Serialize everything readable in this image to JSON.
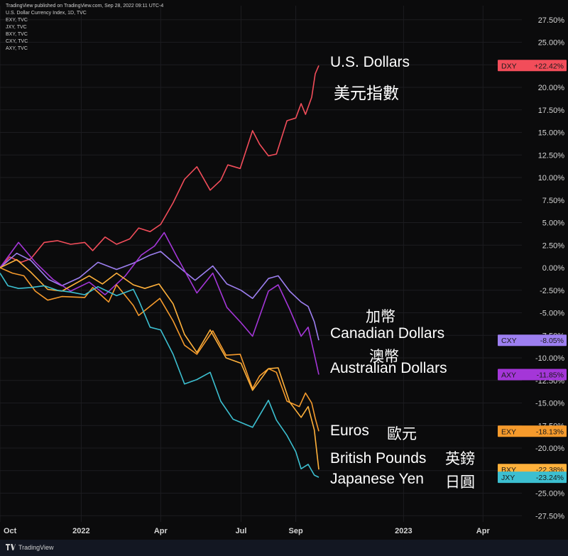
{
  "header": {
    "title": "U.S. Dollar Currency Index, 1D, TVC",
    "publisher": "TradingView published on TradingView.com, Sep 28, 2022 09:11 UTC-4",
    "legend_lines": [
      "EXY, TVC",
      "JXY, TVC",
      "BXY, TVC",
      "CXY, TVC",
      "AXY, TVC"
    ]
  },
  "annotations": {
    "usd_en": "U.S. Dollars",
    "usd_zh": "美元指數",
    "cad_zh": "加幣",
    "cad_en": "Canadian Dollars",
    "aud_zh": "澳幣",
    "aud_en": "Australian Dollars",
    "eur_en": "Euros",
    "eur_zh": "歐元",
    "gbp_en": "British Pounds",
    "gbp_zh": "英鎊",
    "jpy_en": "Japanese Yen",
    "jpy_zh": "日圓"
  },
  "footer": {
    "brand": "TradingView"
  },
  "chart_data": {
    "type": "line",
    "ylim": [
      -28.5,
      28.0
    ],
    "y_ticks": [
      27.5,
      25,
      22.5,
      20,
      17.5,
      15,
      12.5,
      10,
      7.5,
      5,
      2.5,
      0,
      -2.5,
      -5,
      -7.5,
      -10,
      -12.5,
      -15,
      -17.5,
      -20,
      -22.5,
      -25,
      -27.5
    ],
    "y_tick_labels": [
      "27.50%",
      "25.00%",
      "22.50%",
      "20.00%",
      "17.50%",
      "15.00%",
      "12.50%",
      "10.00%",
      "7.50%",
      "5.00%",
      "2.50%",
      "0.00%",
      "-2.50%",
      "-5.00%",
      "-7.50%",
      "-10.00%",
      "-12.50%",
      "-15.00%",
      "-17.50%",
      "-20.00%",
      "-22.50%",
      "-25.00%",
      "-27.50%"
    ],
    "x_range": [
      "2021-10-01",
      "2023-05-15"
    ],
    "x_tick_labels": [
      {
        "date": "2021-10-01",
        "label": "Oct"
      },
      {
        "date": "2022-01-01",
        "label": "2022"
      },
      {
        "date": "2022-04-01",
        "label": "Apr"
      },
      {
        "date": "2022-07-01",
        "label": "Jul"
      },
      {
        "date": "2022-09-01",
        "label": "Sep"
      },
      {
        "date": "2023-01-01",
        "label": "2023"
      },
      {
        "date": "2023-04-01",
        "label": "Apr"
      }
    ],
    "series": [
      {
        "name": "DXY",
        "color": "#f24d5a",
        "final_label": "+22.42%",
        "final_value": 22.42,
        "points": [
          [
            "2021-10-01",
            0
          ],
          [
            "2021-10-12",
            1.2
          ],
          [
            "2021-10-25",
            0.6
          ],
          [
            "2021-11-05",
            1.0
          ],
          [
            "2021-11-20",
            2.8
          ],
          [
            "2021-12-05",
            3.0
          ],
          [
            "2021-12-20",
            2.6
          ],
          [
            "2022-01-05",
            2.8
          ],
          [
            "2022-01-14",
            1.9
          ],
          [
            "2022-01-28",
            3.4
          ],
          [
            "2022-02-10",
            2.6
          ],
          [
            "2022-02-25",
            3.2
          ],
          [
            "2022-03-07",
            4.4
          ],
          [
            "2022-03-20",
            4.0
          ],
          [
            "2022-04-01",
            4.8
          ],
          [
            "2022-04-15",
            7.2
          ],
          [
            "2022-04-28",
            9.8
          ],
          [
            "2022-05-12",
            11.2
          ],
          [
            "2022-05-27",
            8.6
          ],
          [
            "2022-06-08",
            9.7
          ],
          [
            "2022-06-16",
            11.4
          ],
          [
            "2022-06-30",
            11.0
          ],
          [
            "2022-07-14",
            15.2
          ],
          [
            "2022-07-22",
            13.7
          ],
          [
            "2022-08-01",
            12.4
          ],
          [
            "2022-08-10",
            12.6
          ],
          [
            "2022-08-22",
            16.3
          ],
          [
            "2022-09-01",
            16.6
          ],
          [
            "2022-09-07",
            18.2
          ],
          [
            "2022-09-12",
            17.0
          ],
          [
            "2022-09-19",
            18.9
          ],
          [
            "2022-09-23",
            21.5
          ],
          [
            "2022-09-27",
            22.42
          ]
        ]
      },
      {
        "name": "CXY",
        "color": "#9d7ff0",
        "final_label": "-8.05%",
        "final_value": -8.05,
        "points": [
          [
            "2021-10-01",
            0
          ],
          [
            "2021-10-20",
            1.6
          ],
          [
            "2021-11-05",
            0.8
          ],
          [
            "2021-11-25",
            -1.3
          ],
          [
            "2021-12-10",
            -2.0
          ],
          [
            "2021-12-30",
            -1.1
          ],
          [
            "2022-01-20",
            0.6
          ],
          [
            "2022-02-10",
            -0.2
          ],
          [
            "2022-03-01",
            0.5
          ],
          [
            "2022-03-20",
            1.4
          ],
          [
            "2022-04-01",
            1.8
          ],
          [
            "2022-04-15",
            0.6
          ],
          [
            "2022-05-10",
            -1.4
          ],
          [
            "2022-05-30",
            0.2
          ],
          [
            "2022-06-15",
            -1.8
          ],
          [
            "2022-07-01",
            -2.5
          ],
          [
            "2022-07-14",
            -3.4
          ],
          [
            "2022-08-01",
            -1.2
          ],
          [
            "2022-08-12",
            -0.9
          ],
          [
            "2022-08-25",
            -2.6
          ],
          [
            "2022-09-07",
            -3.8
          ],
          [
            "2022-09-15",
            -4.3
          ],
          [
            "2022-09-22",
            -6.0
          ],
          [
            "2022-09-27",
            -8.05
          ]
        ]
      },
      {
        "name": "AXY",
        "color": "#a436d8",
        "final_label": "-11.85%",
        "final_value": -11.85,
        "points": [
          [
            "2021-10-01",
            0
          ],
          [
            "2021-10-22",
            2.8
          ],
          [
            "2021-11-10",
            0.6
          ],
          [
            "2021-11-30",
            -1.3
          ],
          [
            "2021-12-20",
            -2.6
          ],
          [
            "2022-01-10",
            -1.6
          ],
          [
            "2022-01-28",
            -3.0
          ],
          [
            "2022-02-20",
            -0.9
          ],
          [
            "2022-03-10",
            1.4
          ],
          [
            "2022-03-25",
            2.4
          ],
          [
            "2022-04-05",
            3.9
          ],
          [
            "2022-04-20",
            1.1
          ],
          [
            "2022-05-12",
            -2.8
          ],
          [
            "2022-05-30",
            -0.6
          ],
          [
            "2022-06-15",
            -4.4
          ],
          [
            "2022-07-01",
            -6.1
          ],
          [
            "2022-07-14",
            -7.6
          ],
          [
            "2022-08-01",
            -2.6
          ],
          [
            "2022-08-12",
            -1.9
          ],
          [
            "2022-08-25",
            -4.6
          ],
          [
            "2022-09-07",
            -7.6
          ],
          [
            "2022-09-15",
            -6.6
          ],
          [
            "2022-09-22",
            -9.6
          ],
          [
            "2022-09-27",
            -11.85
          ]
        ]
      },
      {
        "name": "EXY",
        "color": "#f59a2c",
        "final_label": "-18.13%",
        "final_value": -18.13,
        "points": [
          [
            "2021-10-01",
            0
          ],
          [
            "2021-10-15",
            -0.6
          ],
          [
            "2021-10-28",
            -0.9
          ],
          [
            "2021-11-10",
            -2.6
          ],
          [
            "2021-11-24",
            -3.6
          ],
          [
            "2021-12-10",
            -3.2
          ],
          [
            "2022-01-05",
            -3.3
          ],
          [
            "2022-01-14",
            -2.2
          ],
          [
            "2022-02-01",
            -3.8
          ],
          [
            "2022-02-10",
            -1.9
          ],
          [
            "2022-03-01",
            -4.2
          ],
          [
            "2022-03-07",
            -5.3
          ],
          [
            "2022-03-31",
            -3.4
          ],
          [
            "2022-04-15",
            -5.9
          ],
          [
            "2022-04-28",
            -8.6
          ],
          [
            "2022-05-12",
            -9.6
          ],
          [
            "2022-05-30",
            -7.0
          ],
          [
            "2022-06-14",
            -9.7
          ],
          [
            "2022-06-30",
            -9.6
          ],
          [
            "2022-07-14",
            -13.4
          ],
          [
            "2022-07-22",
            -12.0
          ],
          [
            "2022-08-01",
            -11.2
          ],
          [
            "2022-08-10",
            -11.6
          ],
          [
            "2022-08-22",
            -14.8
          ],
          [
            "2022-09-05",
            -15.4
          ],
          [
            "2022-09-12",
            -13.9
          ],
          [
            "2022-09-19",
            -15.0
          ],
          [
            "2022-09-23",
            -16.7
          ],
          [
            "2022-09-27",
            -18.13
          ]
        ]
      },
      {
        "name": "BXY",
        "color": "#ffb13b",
        "final_label": "-22.38%",
        "final_value": -22.38,
        "points": [
          [
            "2021-10-01",
            0
          ],
          [
            "2021-10-20",
            0.9
          ],
          [
            "2021-11-05",
            -0.5
          ],
          [
            "2021-11-24",
            -2.4
          ],
          [
            "2021-12-10",
            -2.6
          ],
          [
            "2022-01-10",
            -0.9
          ],
          [
            "2022-01-25",
            -1.8
          ],
          [
            "2022-02-10",
            -0.6
          ],
          [
            "2022-03-01",
            -1.9
          ],
          [
            "2022-03-14",
            -2.3
          ],
          [
            "2022-03-30",
            -1.8
          ],
          [
            "2022-04-15",
            -4.0
          ],
          [
            "2022-04-28",
            -7.4
          ],
          [
            "2022-05-12",
            -9.4
          ],
          [
            "2022-05-27",
            -6.9
          ],
          [
            "2022-06-14",
            -10.0
          ],
          [
            "2022-07-01",
            -10.6
          ],
          [
            "2022-07-14",
            -13.6
          ],
          [
            "2022-08-01",
            -11.2
          ],
          [
            "2022-08-12",
            -11.1
          ],
          [
            "2022-08-25",
            -14.9
          ],
          [
            "2022-09-07",
            -16.6
          ],
          [
            "2022-09-15",
            -15.4
          ],
          [
            "2022-09-22",
            -18.0
          ],
          [
            "2022-09-27",
            -22.38
          ]
        ]
      },
      {
        "name": "JXY",
        "color": "#3cbfd0",
        "final_label": "-23.24%",
        "final_value": -23.24,
        "points": [
          [
            "2021-10-01",
            -0.6
          ],
          [
            "2021-10-10",
            -2.0
          ],
          [
            "2021-10-22",
            -2.3
          ],
          [
            "2021-11-05",
            -2.2
          ],
          [
            "2021-11-20",
            -2.0
          ],
          [
            "2021-12-05",
            -2.5
          ],
          [
            "2021-12-20",
            -2.7
          ],
          [
            "2022-01-05",
            -3.0
          ],
          [
            "2022-01-20",
            -2.1
          ],
          [
            "2022-02-10",
            -3.1
          ],
          [
            "2022-03-01",
            -2.4
          ],
          [
            "2022-03-07",
            -3.6
          ],
          [
            "2022-03-20",
            -6.6
          ],
          [
            "2022-04-01",
            -6.9
          ],
          [
            "2022-04-15",
            -9.6
          ],
          [
            "2022-04-28",
            -12.9
          ],
          [
            "2022-05-12",
            -12.4
          ],
          [
            "2022-05-27",
            -11.6
          ],
          [
            "2022-06-08",
            -14.8
          ],
          [
            "2022-06-22",
            -16.8
          ],
          [
            "2022-07-14",
            -17.7
          ],
          [
            "2022-08-01",
            -14.7
          ],
          [
            "2022-08-10",
            -16.9
          ],
          [
            "2022-08-22",
            -18.6
          ],
          [
            "2022-09-01",
            -20.4
          ],
          [
            "2022-09-07",
            -22.3
          ],
          [
            "2022-09-15",
            -21.8
          ],
          [
            "2022-09-22",
            -23.0
          ],
          [
            "2022-09-27",
            -23.24
          ]
        ]
      }
    ]
  }
}
